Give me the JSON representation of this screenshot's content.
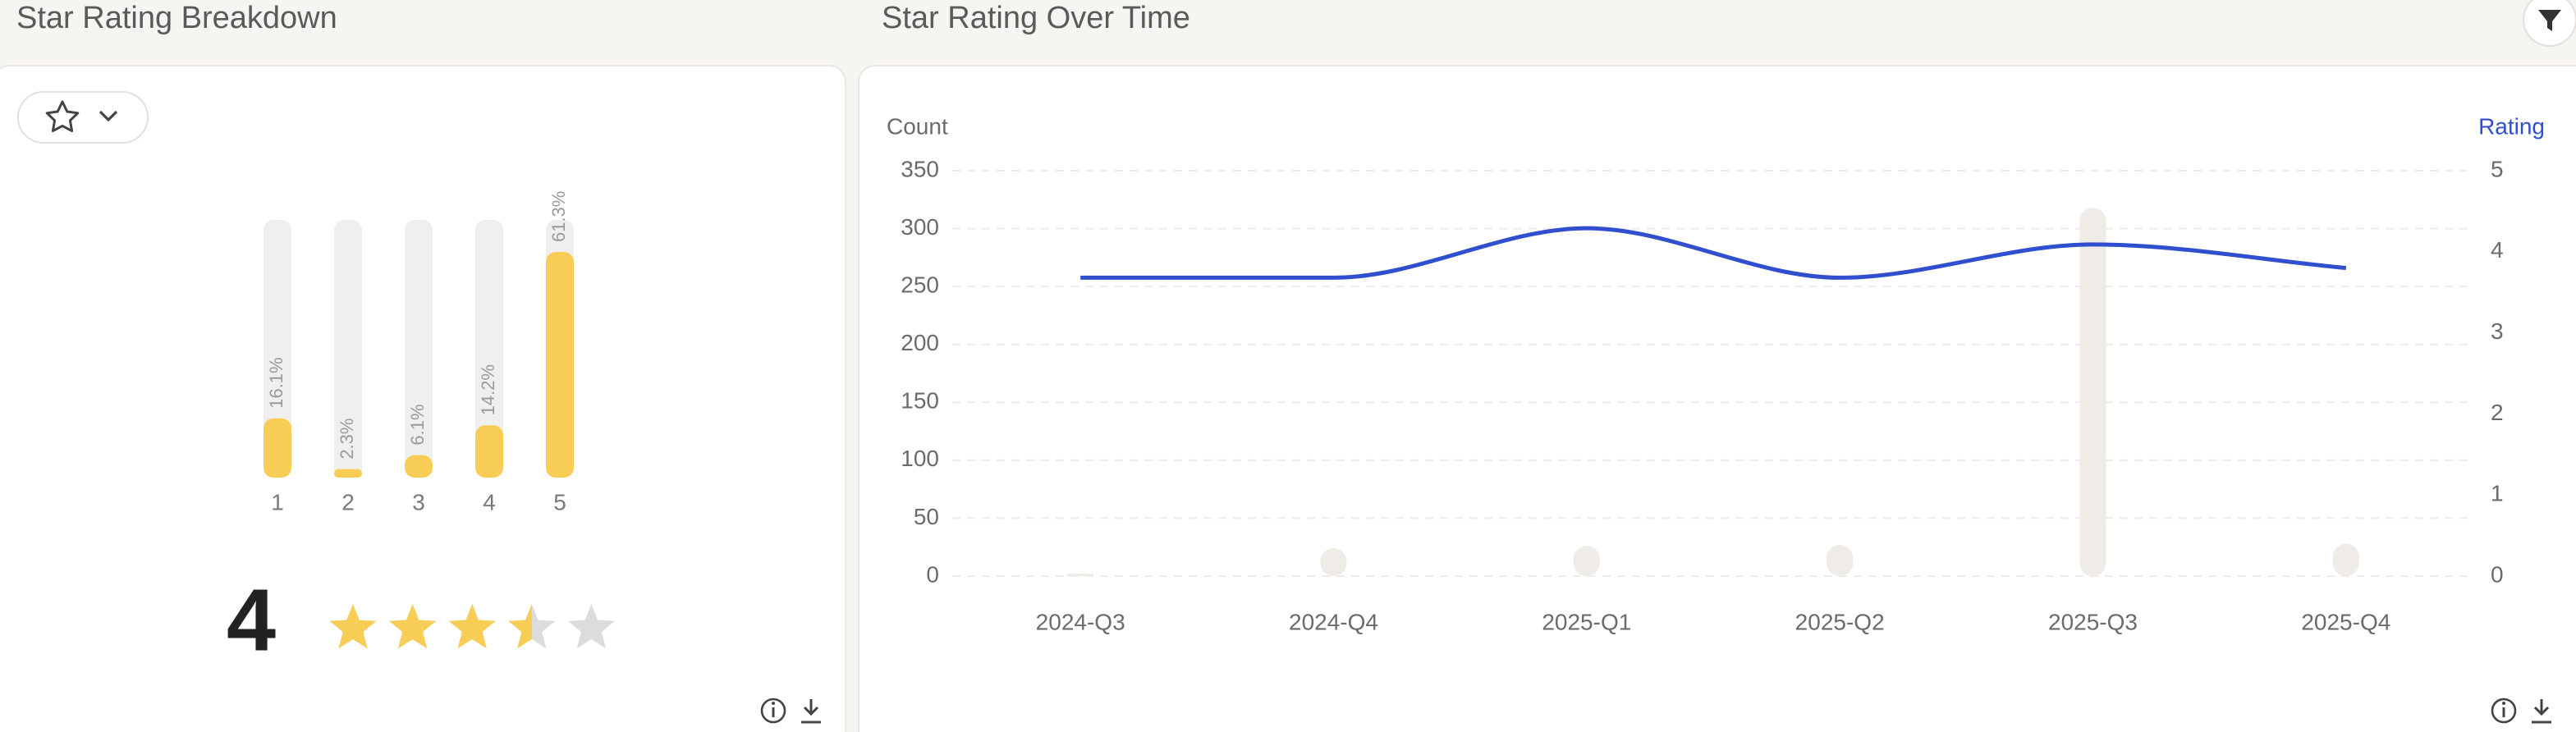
{
  "chart_data": [
    {
      "type": "rating-bars",
      "title": "Star Rating Breakdown",
      "categories": [
        "1",
        "2",
        "3",
        "4",
        "5"
      ],
      "values": [
        16.1,
        2.3,
        6.1,
        14.2,
        61.3
      ],
      "value_labels": [
        "16.1%",
        "2.3%",
        "6.1%",
        "14.2%",
        "61.3%"
      ],
      "color": "#f8cd55",
      "ylim": [
        0,
        70
      ],
      "rating": 4,
      "stars_filled": 3.5
    },
    {
      "type": "combo",
      "title": "Star Rating Over Time",
      "y_label": "Count",
      "y2_label": "Rating",
      "categories": [
        "2024-Q3",
        "2024-Q4",
        "2025-Q1",
        "2025-Q2",
        "2025-Q3",
        "2025-Q4"
      ],
      "series": [
        {
          "type": "bar",
          "color": "#efebe6",
          "values": [
            2,
            24,
            26,
            27,
            318,
            28
          ]
        },
        {
          "type": "line",
          "axis": "y2",
          "color": "#2f4fcf",
          "values": [
            3.68,
            3.68,
            4.29,
            3.68,
            4.09,
            3.8
          ]
        }
      ],
      "ylim": [
        0,
        350
      ],
      "yticks": [
        0,
        50,
        100,
        150,
        200,
        250,
        300,
        350
      ],
      "y2lim": [
        0,
        5
      ],
      "y2ticks": [
        0,
        1,
        2,
        3,
        4,
        5
      ],
      "grid": true
    }
  ]
}
